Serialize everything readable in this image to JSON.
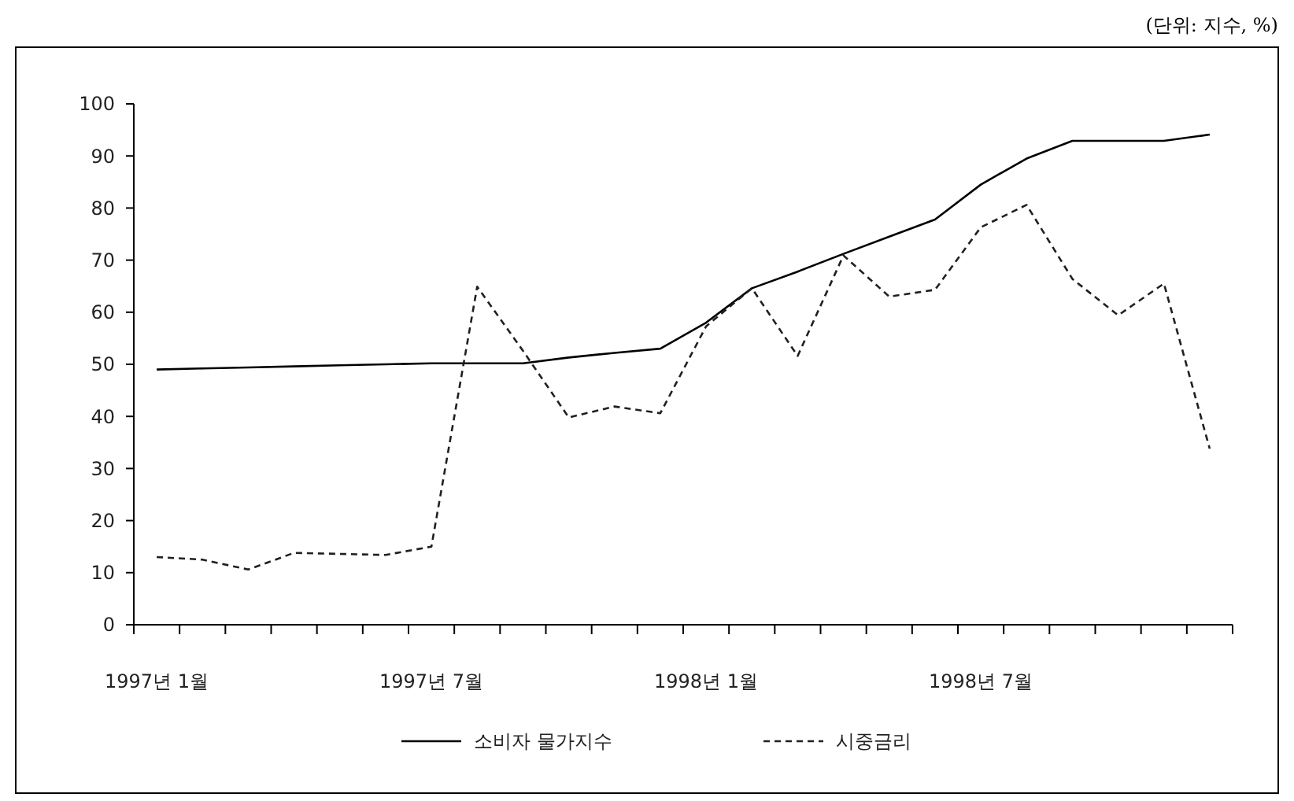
{
  "chart_data": {
    "type": "line",
    "categories": [
      "1997년 1월",
      null,
      null,
      null,
      null,
      null,
      "1997년 7월",
      null,
      null,
      null,
      null,
      null,
      "1998년 1월",
      null,
      null,
      null,
      null,
      null,
      "1998년 7월",
      null,
      null,
      null,
      null,
      null
    ],
    "series": [
      {
        "name": "소비자 물가지수",
        "color": "#000000",
        "line_style": "solid",
        "values": [
          49,
          49.2,
          49.4,
          49.6,
          49.8,
          50,
          50.2,
          50.2,
          50.2,
          51.3,
          52.2,
          53,
          58,
          64.6,
          67.8,
          71.2,
          74.5,
          77.8,
          84.5,
          89.5,
          92.9,
          92.9,
          92.9,
          94.1
        ]
      },
      {
        "name": "시중금리",
        "color": "#202020",
        "line_style": "dashed",
        "values": [
          13,
          12.5,
          10.6,
          13.8,
          13.6,
          13.4,
          15,
          64.9,
          52.6,
          39.8,
          41.9,
          40.6,
          57.3,
          64.6,
          51.6,
          70.9,
          63,
          64.3,
          76.3,
          80.6,
          66.4,
          59.4,
          65.5,
          33.8
        ]
      }
    ],
    "ylim": [
      0,
      100
    ],
    "yticks": [
      0,
      10,
      20,
      30,
      40,
      50,
      60,
      70,
      80,
      90,
      100
    ],
    "grid": false,
    "legend": "bottom",
    "annotations": [
      "(단위: 지수, %)"
    ]
  }
}
